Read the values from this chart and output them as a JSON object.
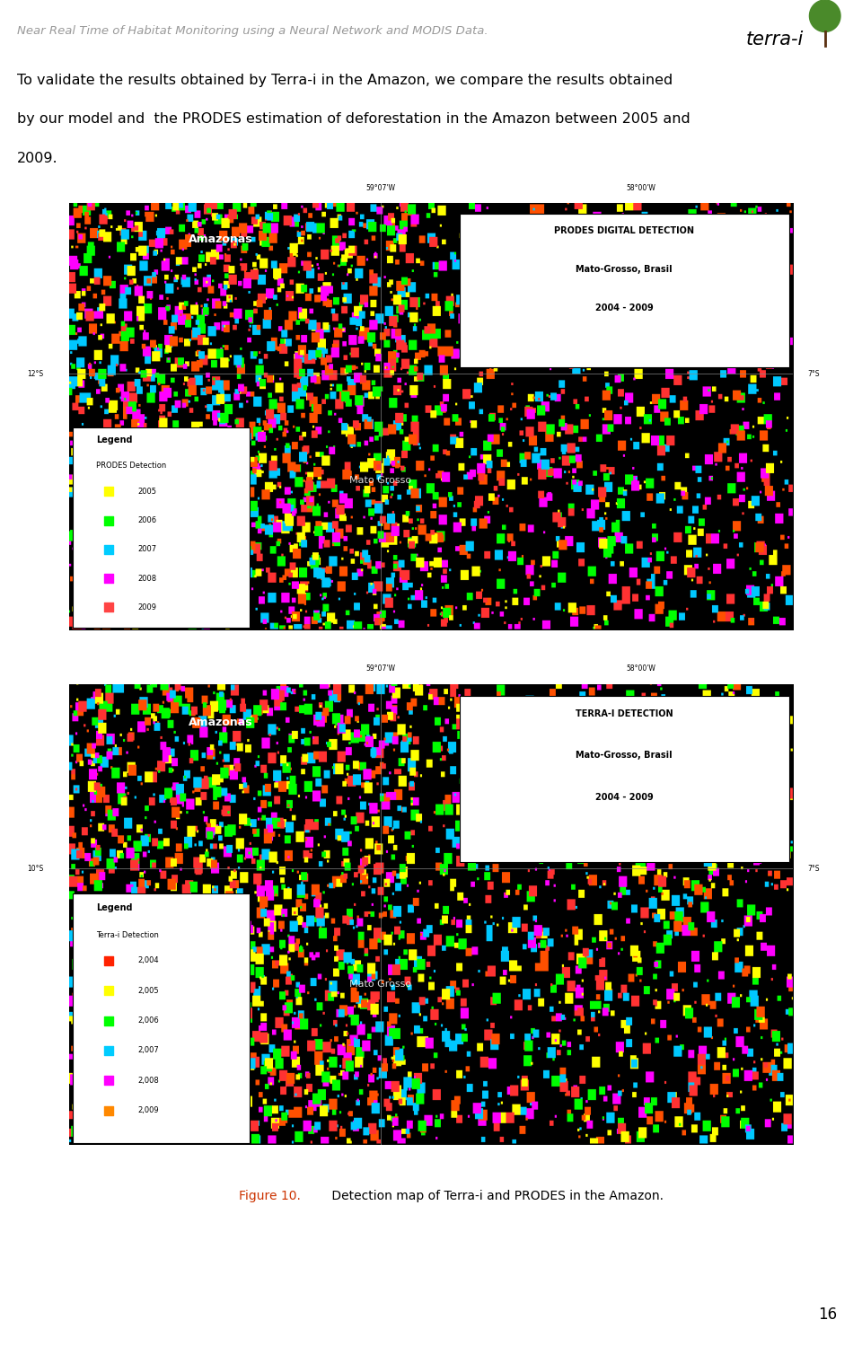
{
  "header_text": "Near Real Time of Habitat Monitoring using a Neural Network and MODIS Data.",
  "header_color": "#999999",
  "header_line_color": "#808000",
  "body_line1": "To validate the results obtained by Terra-i in the Amazon, we compare the results obtained",
  "body_line2": "by our model and  the PRODES estimation of deforestation in the Amazon between 2005 and",
  "body_line3": "2009.",
  "fig_caption_bold": "Figure 10.",
  "fig_caption_rest": " Detection map of Terra-i and PRODES in the Amazon.",
  "page_number": "16",
  "map1_title_line1": "PRODES DIGITAL DETECTION",
  "map1_title_line2": "Mato-Grosso, Brasil",
  "map1_title_line3": "2004 - 2009",
  "map1_label": "Amazonas",
  "map1_region": "Mato Grosso",
  "map1_legend_title": "Legend",
  "map1_legend_subtitle": "PRODES Detection",
  "map1_legend_items": [
    "2005",
    "2006",
    "2007",
    "2008",
    "2009"
  ],
  "map2_title_line1": "TERRA-I DETECTION",
  "map2_title_line2": "Mato-Grosso, Brasil",
  "map2_title_line3": "2004 - 2009",
  "map2_label": "Amazonas",
  "map2_region": "Mato Grosso",
  "map2_legend_title": "Legend",
  "map2_legend_subtitle": "Terra-i Detection",
  "map2_legend_items": [
    "2,004",
    "2,005",
    "2,006",
    "2,007",
    "2,008",
    "2,009"
  ],
  "legend_colors1": [
    "#ffff00",
    "#00ff00",
    "#00ccff",
    "#ff00ff",
    "#ff4444"
  ],
  "legend_colors2": [
    "#ff2200",
    "#ffff00",
    "#00ff00",
    "#00ccff",
    "#ff00ff",
    "#ff8800"
  ],
  "coord_top1": "59°07'W",
  "coord_top2": "58°00'W",
  "coord_left1": "12°S",
  "coord_right1": "7°S",
  "coord_left2": "10°S",
  "coord_right2": "7°S",
  "page_bg": "#ffffff"
}
